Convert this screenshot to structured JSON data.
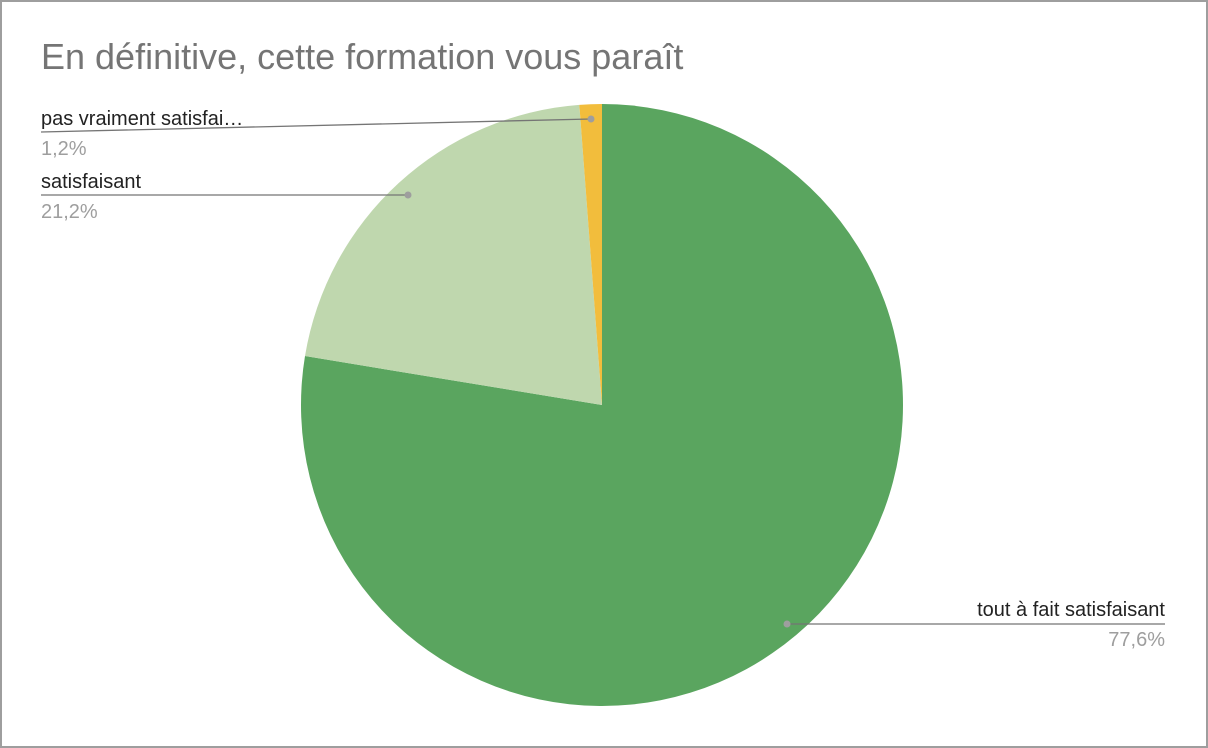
{
  "chart_data": {
    "type": "pie",
    "title": "En définitive, cette formation vous paraît",
    "slices": [
      {
        "label": "tout à fait satisfaisant",
        "percent_label": "77,6%",
        "value": 77.6,
        "color": "#5aa55f"
      },
      {
        "label": "satisfaisant",
        "percent_label": "21,2%",
        "value": 21.2,
        "color": "#bfd7ae"
      },
      {
        "label": "pas vraiment satisfai…",
        "percent_label": "1,2%",
        "value": 1.2,
        "color": "#f2bd3c"
      }
    ],
    "start_angle": "12 o'clock",
    "direction": "clockwise",
    "legend": "none",
    "leader_line_color": "#757575"
  }
}
